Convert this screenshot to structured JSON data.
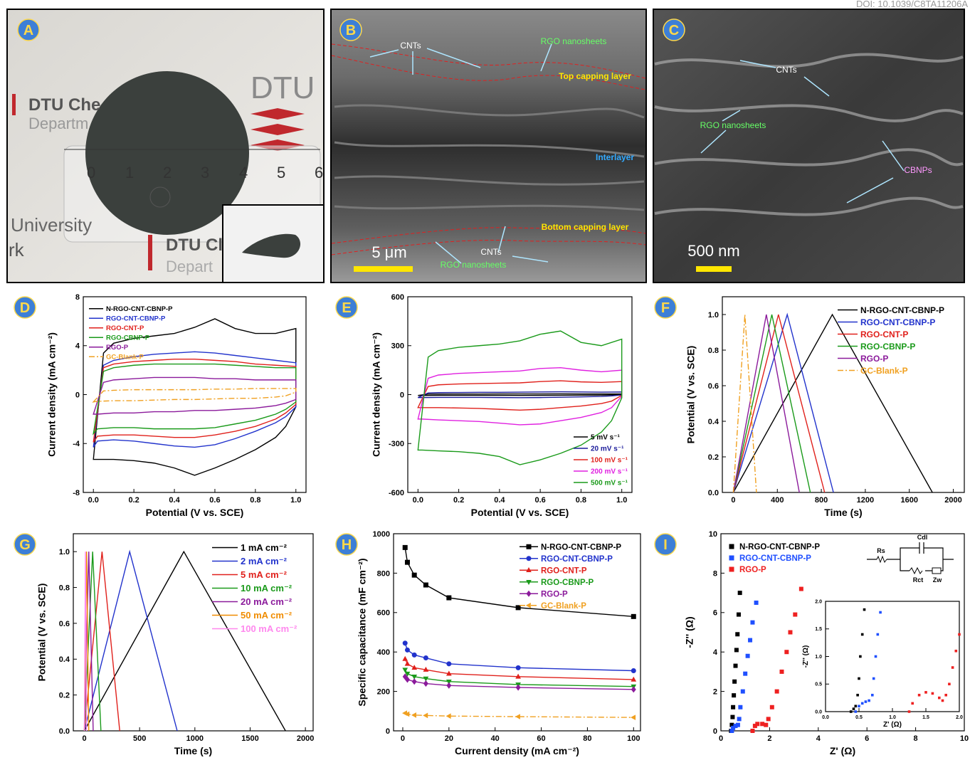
{
  "doi": "DOI: 10.1039/C8TA11206A",
  "images": [
    {
      "panel": "A",
      "texts": [
        "DTU Che",
        "Departm",
        "DTU",
        "0",
        "1",
        "2",
        "3",
        "4",
        "5",
        "6",
        "University",
        "rk",
        "DTU Cl",
        "Depart"
      ]
    },
    {
      "panel": "B",
      "texts": [
        "CNTs",
        "RGO nanosheets",
        "Top capping layer",
        "Interlayer",
        "Bottom capping layer",
        "CNTs",
        "RGO nanosheets"
      ],
      "scale_bar": "5 μm"
    },
    {
      "panel": "C",
      "texts": [
        "CNTs",
        "RGO nanosheets",
        "CBNPs"
      ],
      "scale_bar": "500 nm"
    }
  ],
  "chart_data": [
    {
      "panel": "D",
      "type": "line",
      "closed": true,
      "xlabel": "Potential (V vs. SCE)",
      "ylabel": "Current density (mA cm⁻²)",
      "xlim": [
        -0.05,
        1.05
      ],
      "xticks": [
        {
          "value": 0,
          "label": "0.0"
        },
        0.2,
        0.4,
        0.6,
        0.8,
        {
          "value": 1,
          "label": "1.0"
        }
      ],
      "ylim": [
        -8,
        8
      ],
      "yticks": [
        -8,
        -4,
        0,
        4,
        8
      ],
      "legend": "upper left",
      "x": [
        0,
        0.05,
        0.1,
        0.2,
        0.3,
        0.4,
        0.5,
        0.6,
        0.7,
        0.8,
        0.9,
        1,
        1,
        0.95,
        0.9,
        0.8,
        0.7,
        0.6,
        0.5,
        0.4,
        0.3,
        0.2,
        0.1,
        0.02
      ],
      "series": [
        {
          "name": "N-RGO-CNT-CBNP-P",
          "color": "#000000",
          "values": [
            -5.3,
            3.4,
            4.2,
            4.6,
            4.8,
            5.0,
            5.5,
            6.2,
            5.4,
            5.0,
            5.0,
            5.4,
            -1.0,
            -2.6,
            -3.5,
            -4.5,
            -5.3,
            -6.0,
            -6.6,
            -6.0,
            -5.6,
            -5.4,
            -5.3,
            -5.3
          ]
        },
        {
          "name": "RGO-CNT-CBNP-P",
          "color": "#2233cc",
          "values": [
            -4.3,
            2.4,
            2.8,
            3.1,
            3.3,
            3.4,
            3.5,
            3.4,
            3.2,
            3.0,
            2.8,
            2.6,
            -1.0,
            -1.8,
            -2.3,
            -3.0,
            -3.6,
            -4.1,
            -4.3,
            -4.2,
            -4.0,
            -3.8,
            -3.7,
            -3.8
          ]
        },
        {
          "name": "RGO-CNT-P",
          "color": "#e0201b",
          "values": [
            -3.9,
            2.2,
            2.5,
            2.7,
            2.8,
            2.9,
            2.9,
            2.8,
            2.7,
            2.5,
            2.4,
            2.3,
            -0.8,
            -1.5,
            -2.0,
            -2.6,
            -3.0,
            -3.3,
            -3.5,
            -3.5,
            -3.4,
            -3.3,
            -3.3,
            -3.4
          ]
        },
        {
          "name": "RGO-CBNP-P",
          "color": "#1a9a1a",
          "values": [
            -3.2,
            1.9,
            2.2,
            2.4,
            2.5,
            2.5,
            2.5,
            2.5,
            2.4,
            2.3,
            2.2,
            2.2,
            -0.6,
            -1.2,
            -1.6,
            -2.1,
            -2.4,
            -2.7,
            -2.8,
            -2.8,
            -2.8,
            -2.7,
            -2.7,
            -2.8
          ]
        },
        {
          "name": "RGO-P",
          "color": "#8b1a9b",
          "values": [
            -1.6,
            1.0,
            1.2,
            1.3,
            1.4,
            1.4,
            1.4,
            1.3,
            1.3,
            1.2,
            1.2,
            1.2,
            -0.4,
            -0.7,
            -0.9,
            -1.1,
            -1.2,
            -1.3,
            -1.3,
            -1.4,
            -1.4,
            -1.5,
            -1.5,
            -1.6
          ]
        },
        {
          "name": "GC-Blank-P",
          "color": "#f0a020",
          "linestyle": "dashdot",
          "values": [
            -0.6,
            0.3,
            0.35,
            0.4,
            0.4,
            0.4,
            0.4,
            0.45,
            0.45,
            0.5,
            0.5,
            0.5,
            0.2,
            -0.1,
            -0.2,
            -0.3,
            -0.3,
            -0.35,
            -0.4,
            -0.4,
            -0.45,
            -0.5,
            -0.5,
            -0.55
          ]
        }
      ]
    },
    {
      "panel": "E",
      "type": "line",
      "closed": true,
      "xlabel": "Potential (V vs. SCE)",
      "ylabel": "Current density (mA cm⁻²)",
      "xlim": [
        -0.05,
        1.05
      ],
      "xticks": [
        {
          "value": 0,
          "label": "0.0"
        },
        0.2,
        0.4,
        0.6,
        0.8,
        {
          "value": 1,
          "label": "1.0"
        }
      ],
      "ylim": [
        -600,
        600
      ],
      "yticks": [
        -600,
        -300,
        0,
        300,
        600
      ],
      "legend": "lower right",
      "x": [
        0,
        0.05,
        0.1,
        0.2,
        0.3,
        0.4,
        0.5,
        0.6,
        0.7,
        0.8,
        0.9,
        1,
        1,
        0.95,
        0.9,
        0.8,
        0.7,
        0.6,
        0.5,
        0.4,
        0.3,
        0.2,
        0.1,
        0.02
      ],
      "series": [
        {
          "name": "5 mV s⁻¹",
          "color": "#000000",
          "values": [
            -5,
            3,
            3,
            3.5,
            3.5,
            4,
            4,
            4.2,
            4.5,
            4,
            4,
            4,
            -1,
            -2,
            -3,
            -3.5,
            -4,
            -4.5,
            -5,
            -4.5,
            -4.5,
            -4.5,
            -4.5,
            -5
          ]
        },
        {
          "name": "20 mV s⁻¹",
          "color": "#1a1a9a",
          "values": [
            -18,
            10,
            12,
            13,
            14,
            14,
            15,
            16,
            17,
            16,
            15,
            16,
            -2,
            -8,
            -11,
            -14,
            -16,
            -18,
            -19,
            -18,
            -17,
            -17,
            -17,
            -18
          ]
        },
        {
          "name": "100 mV s⁻¹",
          "color": "#e0201b",
          "values": [
            -80,
            50,
            60,
            65,
            68,
            70,
            72,
            80,
            85,
            78,
            75,
            80,
            -5,
            -40,
            -55,
            -70,
            -80,
            -90,
            -95,
            -90,
            -85,
            -82,
            -80,
            -80
          ]
        },
        {
          "name": "200 mV s⁻¹",
          "color": "#e020e0",
          "values": [
            -150,
            100,
            120,
            130,
            135,
            140,
            145,
            160,
            165,
            150,
            140,
            150,
            -10,
            -80,
            -110,
            -140,
            -160,
            -180,
            -185,
            -175,
            -165,
            -160,
            -155,
            -150
          ]
        },
        {
          "name": "500 mV s⁻¹",
          "color": "#1a9a1a",
          "values": [
            -340,
            230,
            270,
            290,
            300,
            310,
            330,
            370,
            390,
            320,
            300,
            340,
            -20,
            -160,
            -230,
            -310,
            -360,
            -400,
            -430,
            -380,
            -360,
            -350,
            -345,
            -340
          ]
        }
      ]
    },
    {
      "panel": "F",
      "type": "line",
      "xlabel": "Time (s)",
      "ylabel": "Potential (V vs. SCE)",
      "xlim": [
        -100,
        2100
      ],
      "xticks": [
        0,
        400,
        800,
        1200,
        1600,
        2000
      ],
      "ylim": [
        0,
        1.1
      ],
      "yticks": [
        {
          "value": 0,
          "label": "0.0"
        },
        0.2,
        0.4,
        0.6,
        0.8,
        {
          "value": 1,
          "label": "1.0"
        }
      ],
      "legend": "upper right",
      "series": [
        {
          "name": "N-RGO-CNT-CBNP-P",
          "color": "#000000",
          "x": [
            0,
            900,
            1810
          ],
          "values": [
            0,
            1,
            0
          ]
        },
        {
          "name": "RGO-CNT-CBNP-P",
          "color": "#2233cc",
          "x": [
            0,
            490,
            910
          ],
          "values": [
            0,
            1,
            0
          ]
        },
        {
          "name": "RGO-CNT-P",
          "color": "#e0201b",
          "x": [
            0,
            410,
            830
          ],
          "values": [
            0,
            1,
            0
          ]
        },
        {
          "name": "RGO-CBNP-P",
          "color": "#1a9a1a",
          "x": [
            0,
            350,
            700
          ],
          "values": [
            0,
            1,
            0
          ]
        },
        {
          "name": "RGO-P",
          "color": "#8b1a9b",
          "x": [
            0,
            300,
            600
          ],
          "values": [
            0,
            1,
            0
          ]
        },
        {
          "name": "GC-Blank-P",
          "color": "#f0a020",
          "linestyle": "dashdot",
          "x": [
            0,
            105,
            210
          ],
          "values": [
            0,
            1,
            0
          ]
        }
      ]
    },
    {
      "panel": "G",
      "type": "line",
      "xlabel": "Time (s)",
      "ylabel": "Potential (V vs. SCE)",
      "xlim": [
        -100,
        2070
      ],
      "xticks": [
        0,
        500,
        1000,
        1500,
        2000
      ],
      "ylim": [
        0,
        1.1
      ],
      "yticks": [
        {
          "value": 0,
          "label": "0.0"
        },
        0.2,
        0.4,
        0.6,
        0.8,
        {
          "value": 1,
          "label": "1.0"
        }
      ],
      "legend": "upper right",
      "series": [
        {
          "name": "1 mA cm⁻²",
          "color": "#000000",
          "x": [
            0,
            900,
            1820
          ],
          "values": [
            0,
            1,
            0
          ]
        },
        {
          "name": "2 mA cm⁻²",
          "color": "#2233cc",
          "x": [
            0,
            410,
            840
          ],
          "values": [
            0,
            1,
            0
          ]
        },
        {
          "name": "5 mA cm⁻²",
          "color": "#e0201b",
          "x": [
            0,
            160,
            320
          ],
          "values": [
            0,
            1,
            0
          ]
        },
        {
          "name": "10 mA cm⁻²",
          "color": "#1a9a1a",
          "x": [
            0,
            75,
            150
          ],
          "values": [
            0,
            1,
            0
          ]
        },
        {
          "name": "20 mA cm⁻²",
          "color": "#8b1a9b",
          "x": [
            0,
            40,
            80
          ],
          "values": [
            0,
            1,
            0
          ]
        },
        {
          "name": "50 mA cm⁻²",
          "color": "#f08c00",
          "x": [
            0,
            20,
            40
          ],
          "values": [
            0,
            1,
            0
          ]
        },
        {
          "name": "100 mA cm⁻²",
          "color": "#ff88ee",
          "x": [
            0,
            10,
            20
          ],
          "values": [
            0,
            1,
            0
          ]
        }
      ]
    },
    {
      "panel": "H",
      "type": "line",
      "xlabel": "Current density (mA cm⁻²)",
      "ylabel": "Specific capacitance (mF cm⁻²)",
      "xlim": [
        -4,
        103
      ],
      "xticks": [
        0,
        20,
        40,
        60,
        80,
        100
      ],
      "ylim": [
        0,
        1000
      ],
      "yticks": [
        0,
        200,
        400,
        600,
        800,
        1000
      ],
      "legend": "upper right",
      "x": [
        1,
        2,
        5,
        10,
        20,
        50,
        100
      ],
      "series": [
        {
          "name": "N-RGO-CNT-CBNP-P",
          "color": "#000000",
          "marker": "square",
          "values": [
            930,
            855,
            790,
            740,
            675,
            625,
            580
          ]
        },
        {
          "name": "RGO-CNT-CBNP-P",
          "color": "#2233cc",
          "marker": "circle",
          "values": [
            445,
            410,
            385,
            370,
            340,
            320,
            305
          ]
        },
        {
          "name": "RGO-CNT-P",
          "color": "#e0201b",
          "marker": "triangle-up",
          "values": [
            365,
            340,
            320,
            310,
            290,
            275,
            260
          ]
        },
        {
          "name": "RGO-CBNP-P",
          "color": "#1a9a1a",
          "marker": "triangle-down",
          "values": [
            310,
            290,
            275,
            265,
            250,
            235,
            225
          ]
        },
        {
          "name": "RGO-P",
          "color": "#8b1a9b",
          "marker": "diamond",
          "values": [
            275,
            260,
            250,
            240,
            230,
            220,
            210
          ]
        },
        {
          "name": "GC-Blank-P",
          "color": "#f0a020",
          "marker": "triangle-left",
          "linestyle": "dashdot",
          "values": [
            90,
            85,
            80,
            78,
            75,
            72,
            68
          ]
        }
      ]
    },
    {
      "panel": "I",
      "type": "scatter",
      "xlabel": "Z' (Ω)",
      "ylabel": "-Z'' (Ω)",
      "xlim": [
        0,
        10
      ],
      "xticks": [
        0,
        2,
        4,
        6,
        8,
        10
      ],
      "ylim": [
        0,
        10
      ],
      "yticks": [
        0,
        2,
        4,
        6,
        8,
        10
      ],
      "legend": "upper left",
      "circuit": [
        "Rs",
        "Cdl",
        "Rct",
        "Zw"
      ],
      "series": [
        {
          "name": "N-RGO-CNT-CBNP-P",
          "color": "#000000",
          "marker": "square",
          "x": [
            0.42,
            0.45,
            0.48,
            0.5,
            0.53,
            0.56,
            0.6,
            0.64,
            0.68,
            0.73,
            0.78
          ],
          "values": [
            0,
            0.3,
            0.7,
            1.2,
            1.8,
            2.5,
            3.3,
            4.1,
            4.9,
            5.9,
            7.0
          ]
        },
        {
          "name": "RGO-CNT-CBNP-P",
          "color": "#1f4fff",
          "marker": "square",
          "x": [
            0.45,
            0.5,
            0.6,
            0.7,
            0.75,
            0.8,
            0.9,
            1.0,
            1.1,
            1.2,
            1.3,
            1.45
          ],
          "values": [
            0,
            0.15,
            0.25,
            0.3,
            0.6,
            1.2,
            2.0,
            2.9,
            3.8,
            4.6,
            5.5,
            6.5
          ]
        },
        {
          "name": "RGO-P",
          "color": "#ee2020",
          "marker": "square",
          "x": [
            1.3,
            1.4,
            1.5,
            1.7,
            1.85,
            1.95,
            2.1,
            2.3,
            2.5,
            2.7,
            2.85,
            3.05,
            3.3
          ],
          "values": [
            0,
            0.25,
            0.35,
            0.35,
            0.3,
            0.6,
            1.2,
            2.0,
            3.0,
            4.0,
            5.0,
            5.9,
            7.2
          ]
        }
      ],
      "inset": {
        "xlabel": "Z' (Ω)",
        "ylabel": "-Z'' (Ω)",
        "xlim": [
          0,
          2
        ],
        "xticks": [
          {
            "value": 0,
            "label": "0.0"
          },
          0.5,
          {
            "value": 1,
            "label": "1.0"
          },
          1.5,
          {
            "value": 2,
            "label": "2.0"
          }
        ],
        "ylim": [
          0,
          2
        ],
        "yticks": [
          {
            "value": 0,
            "label": "0.0"
          },
          0.5,
          {
            "value": 1,
            "label": "1.0"
          },
          1.5,
          {
            "value": 2,
            "label": "2.0"
          }
        ],
        "series": [
          {
            "color": "#000000",
            "x": [
              0.38,
              0.42,
              0.45,
              0.48,
              0.5,
              0.52,
              0.55,
              0.58
            ],
            "values": [
              0,
              0.05,
              0.1,
              0.3,
              0.6,
              1.0,
              1.4,
              1.85
            ]
          },
          {
            "color": "#1f4fff",
            "x": [
              0.45,
              0.5,
              0.55,
              0.6,
              0.65,
              0.7,
              0.72,
              0.75,
              0.78,
              0.82
            ],
            "values": [
              0,
              0.1,
              0.15,
              0.18,
              0.2,
              0.3,
              0.6,
              1.0,
              1.4,
              1.8
            ]
          },
          {
            "color": "#ee2020",
            "x": [
              1.25,
              1.3,
              1.4,
              1.5,
              1.6,
              1.7,
              1.75,
              1.8,
              1.85,
              1.9,
              1.95,
              2.0
            ],
            "values": [
              0,
              0.15,
              0.3,
              0.35,
              0.33,
              0.25,
              0.2,
              0.3,
              0.5,
              0.8,
              1.1,
              1.4
            ]
          }
        ]
      }
    }
  ]
}
